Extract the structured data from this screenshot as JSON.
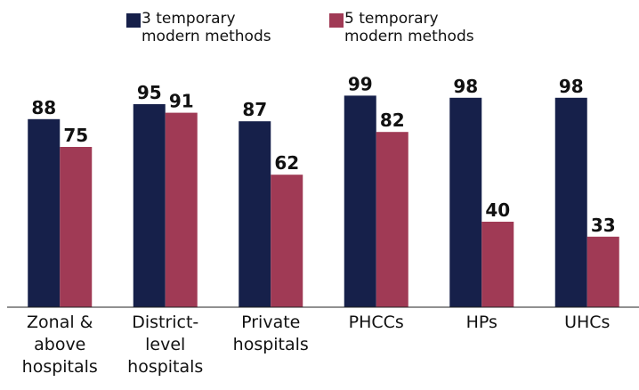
{
  "chart_data": {
    "type": "bar",
    "categories": [
      "Zonal & above hospitals",
      "District-level hospitals",
      "Private hospitals",
      "PHCCs",
      "HPs",
      "UHCs"
    ],
    "series": [
      {
        "name": "3 temporary modern methods",
        "color": "#16204a",
        "values": [
          88,
          95,
          87,
          99,
          98,
          98
        ]
      },
      {
        "name": "5 temporary modern methods",
        "color": "#a03a55",
        "values": [
          75,
          91,
          62,
          82,
          40,
          33
        ]
      }
    ],
    "legend": "top"
  }
}
